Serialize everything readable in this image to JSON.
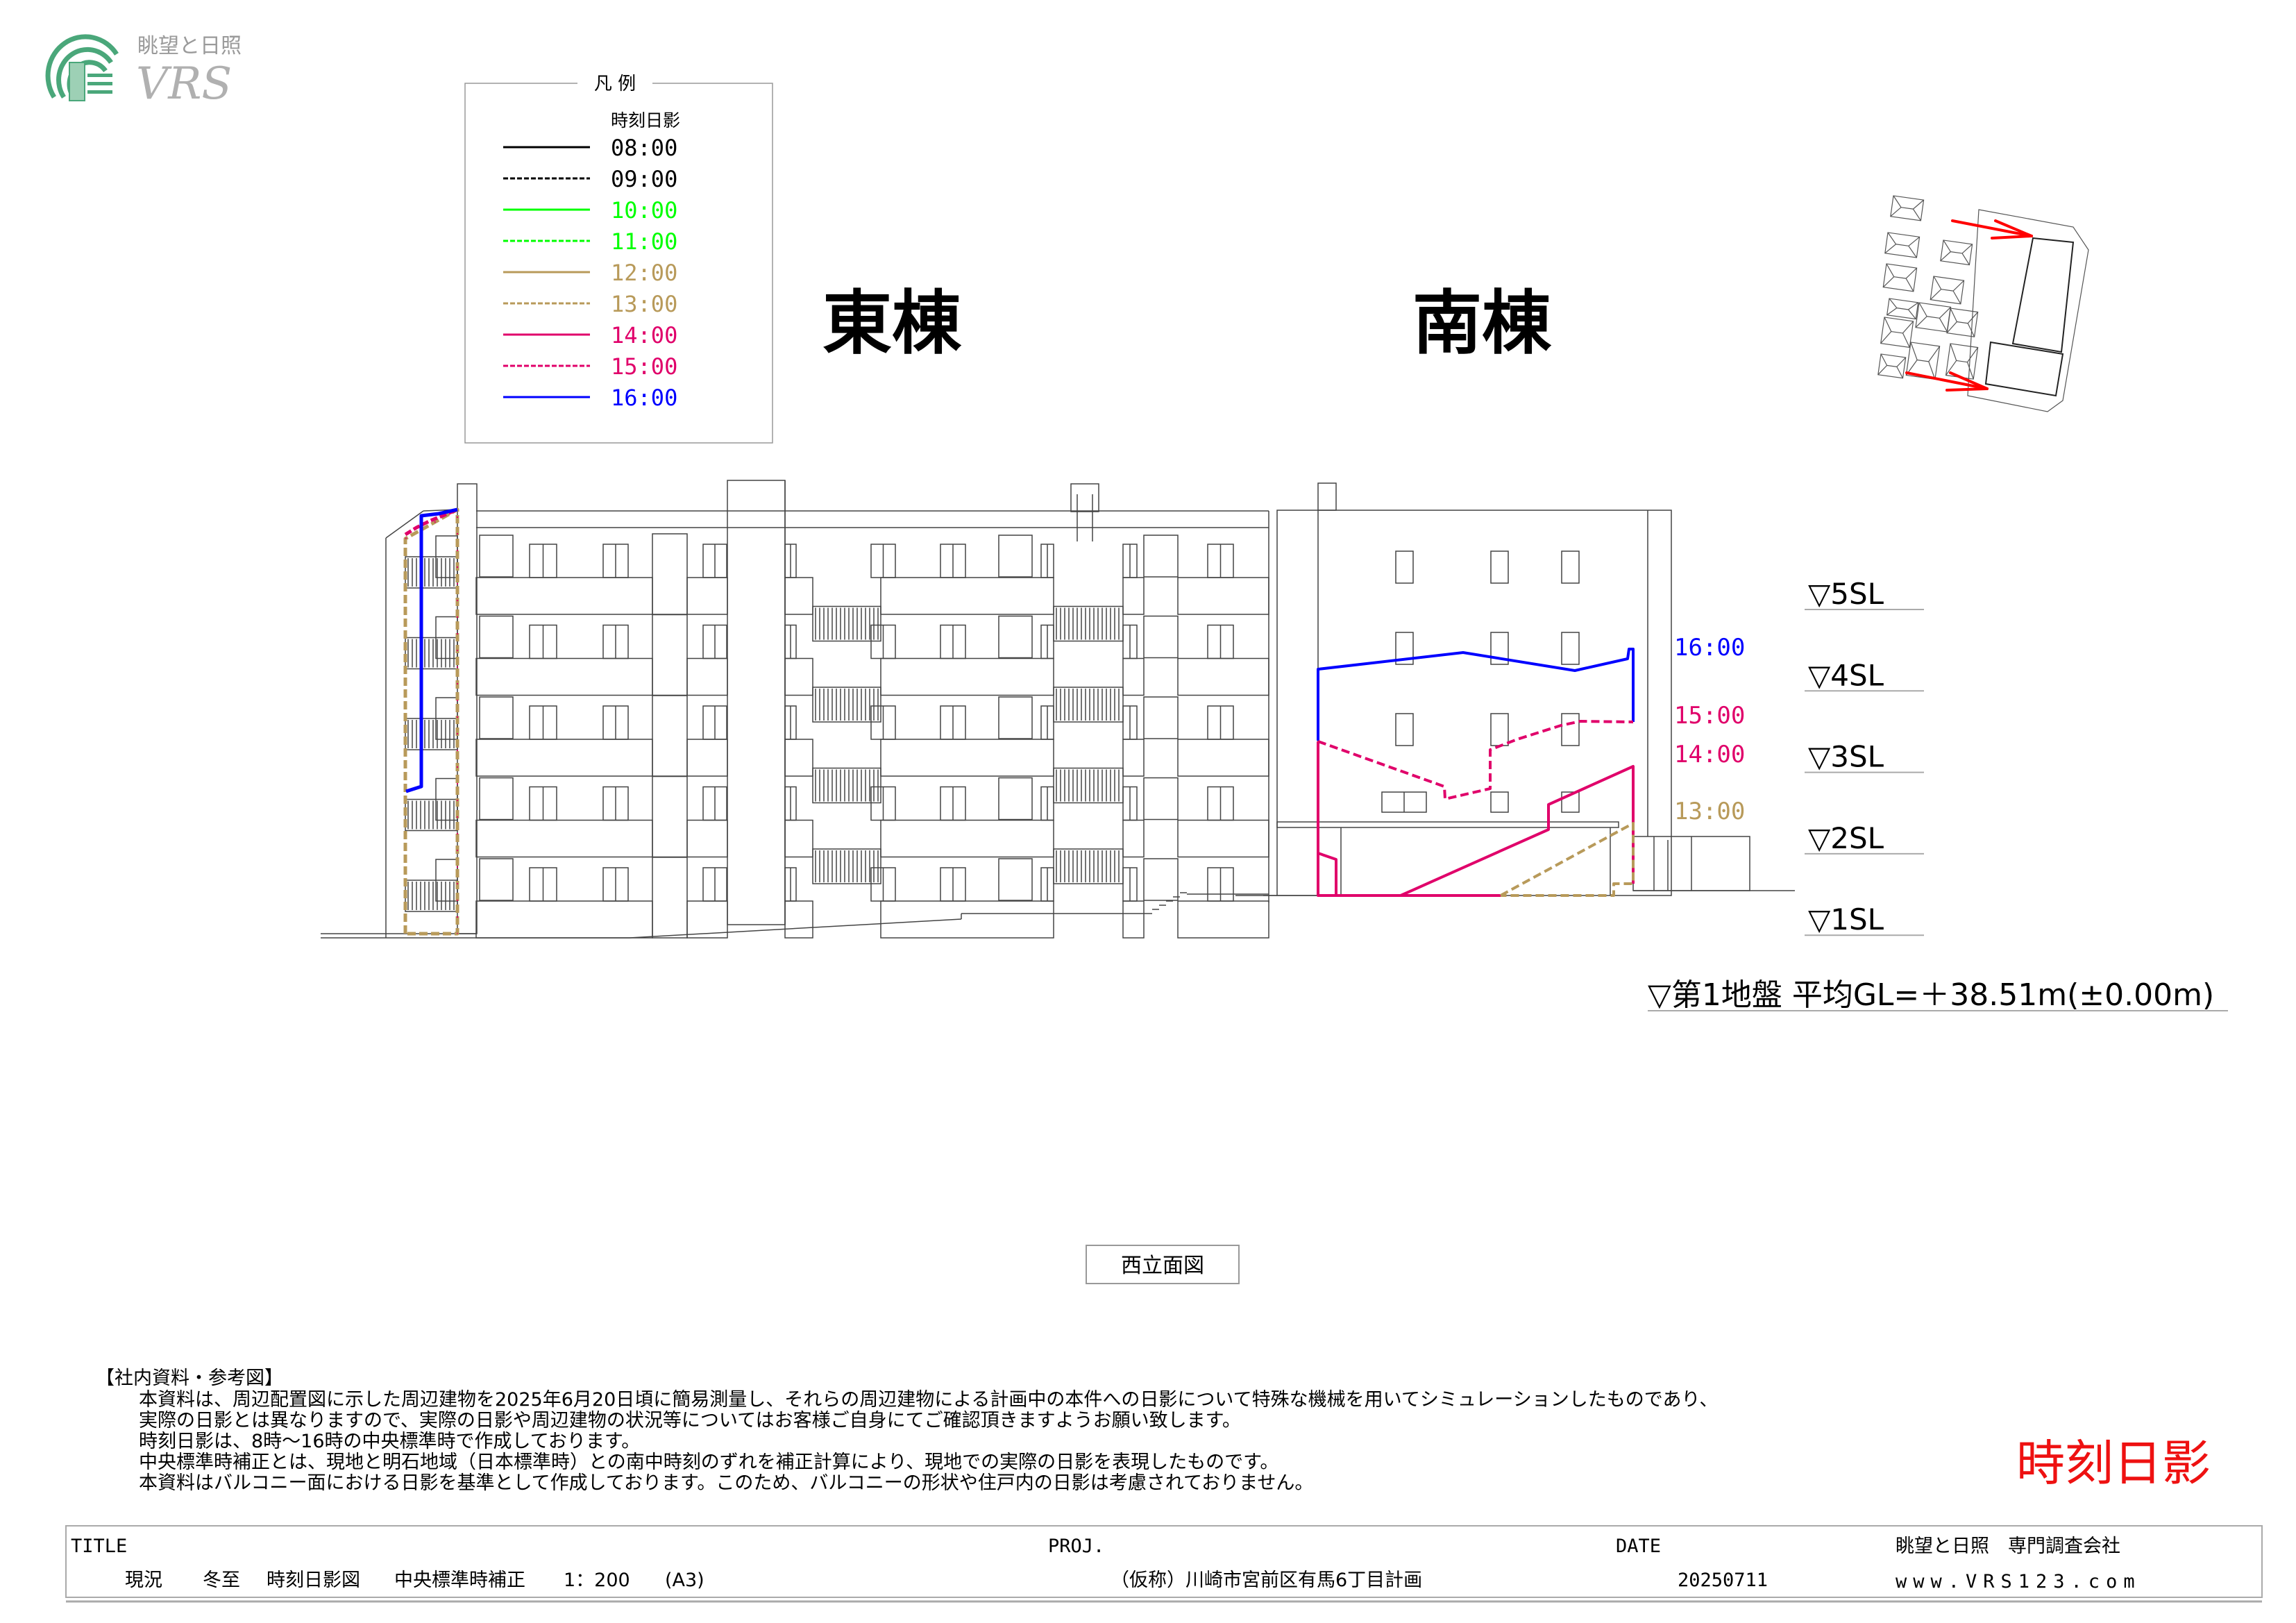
{
  "logo": {
    "jp": "眺望と日照",
    "en": "VRS",
    "color": "#3a9a6a"
  },
  "legend": {
    "title": "凡 例",
    "header": "時刻日影",
    "items": [
      {
        "label": "08:00",
        "color": "#000000",
        "dashed": false
      },
      {
        "label": "09:00",
        "color": "#000000",
        "dashed": true
      },
      {
        "label": "10:00",
        "color": "#00ff00",
        "dashed": false
      },
      {
        "label": "11:00",
        "color": "#00ff00",
        "dashed": true
      },
      {
        "label": "12:00",
        "color": "#b89a5a",
        "dashed": false
      },
      {
        "label": "13:00",
        "color": "#b89a5a",
        "dashed": true
      },
      {
        "label": "14:00",
        "color": "#e0006a",
        "dashed": false
      },
      {
        "label": "15:00",
        "color": "#e0006a",
        "dashed": true
      },
      {
        "label": "16:00",
        "color": "#0000ff",
        "dashed": false
      }
    ]
  },
  "buildings": {
    "east": "東棟",
    "south": "南棟"
  },
  "shadow_labels": {
    "t1600": "16:00",
    "t1500": "15:00",
    "t1400": "14:00",
    "t1300": "13:00"
  },
  "levels": [
    "▽5SL",
    "▽4SL",
    "▽3SL",
    "▽2SL",
    "▽1SL"
  ],
  "ground_level": "▽第1地盤 平均GL=＋38.51m(±0.00m)",
  "view_name": "西立面図",
  "notes": {
    "heading": "【社内資料・参考図】",
    "lines": [
      "本資料は、周辺配置図に示した周辺建物を2025年6月20日頃に簡易測量し、それらの周辺建物による計画中の本件への日影について特殊な機械を用いてシミュレーションしたものであり、",
      "実際の日影とは異なりますので、実際の日影や周辺建物の状況等についてはお客様ご自身にてご確認頂きますようお願い致します。",
      "時刻日影は、8時～16時の中央標準時で作成しております。",
      "中央標準時補正とは、現地と明石地域（日本標準時）との南中時刻のずれを補正計算により、現地での実際の日影を表現したものです。",
      "本資料はバルコニー面における日影を基準として作成しております。このため、バルコニーの形状や住戸内の日影は考慮されておりません。"
    ]
  },
  "stamp": {
    "text": "時刻日影",
    "color": "#ee1111"
  },
  "title_block": {
    "title_label": "TITLE",
    "title_parts": [
      "現況",
      "冬至",
      "時刻日影図",
      "中央標準時補正",
      "1：200",
      "(A3)"
    ],
    "proj_label": "PROJ.",
    "proj_value": "（仮称）川崎市宮前区有馬6丁目計画",
    "date_label": "DATE",
    "date_value": "20250711",
    "company": "眺望と日照　専門調査会社",
    "website": "www.VRS123.com"
  },
  "site_plan": {
    "arrow_color": "#ff0000"
  }
}
